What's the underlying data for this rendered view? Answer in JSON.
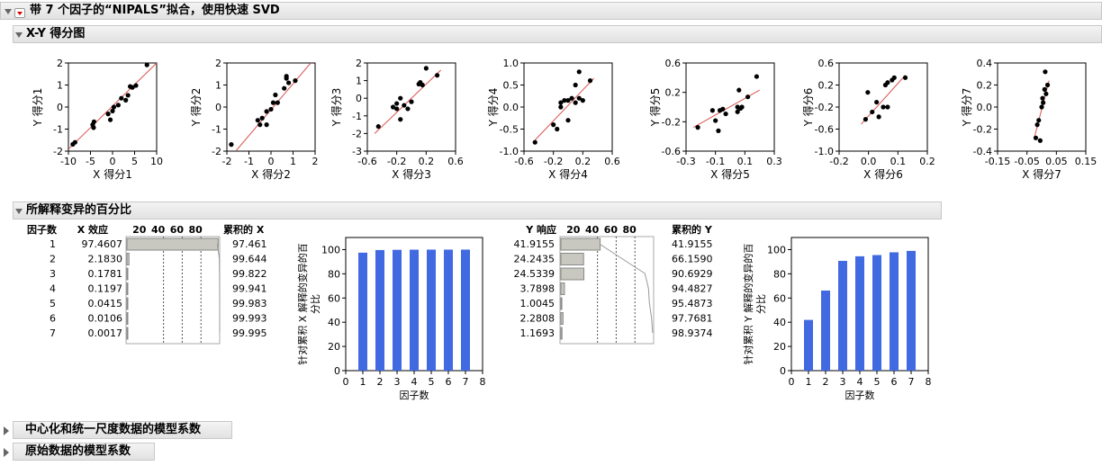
{
  "report": {
    "title": "带 7 个因子的“NIPALS”拟合，使用快速 SVD",
    "xy_section_title": "X-Y 得分图",
    "pct_section_title": "所解释变异的百分比",
    "collapsed_sections": [
      "中心化和统一尺度数据的模型系数",
      "原始数据的模型系数"
    ]
  },
  "colors": {
    "points": "#000000",
    "fit_line": "#d9534f",
    "bars": "#4169e1",
    "hbars": "#c8c8c0"
  },
  "score_plots": [
    {
      "xlabel": "X 得分1",
      "ylabel": "Y 得分1",
      "xticks": [
        "-10",
        "-5",
        "0",
        "5",
        "10"
      ],
      "yticks": [
        "-2",
        "-1",
        "0",
        "1",
        "2"
      ],
      "xlim": [
        -10,
        10
      ],
      "ylim": [
        -2.2,
        2.3
      ],
      "points": [
        [
          -9,
          -1.85
        ],
        [
          -8.5,
          -1.75
        ],
        [
          -4.5,
          -0.85
        ],
        [
          -4.2,
          -0.7
        ],
        [
          -4.3,
          -1.0
        ],
        [
          -1,
          -0.3
        ],
        [
          -0.5,
          -0.6
        ],
        [
          0,
          -0.15
        ],
        [
          0.3,
          0.05
        ],
        [
          1.3,
          0.15
        ],
        [
          2,
          0.5
        ],
        [
          3,
          0.4
        ],
        [
          3.5,
          0.65
        ],
        [
          4,
          1.1
        ],
        [
          4.5,
          1.05
        ],
        [
          5.3,
          1.15
        ],
        [
          7.8,
          2.2
        ]
      ],
      "fit": [
        [
          -10,
          -2.1
        ],
        [
          10,
          2.3
        ]
      ]
    },
    {
      "xlabel": "X 得分2",
      "ylabel": "Y 得分2",
      "xticks": [
        "-2",
        "-1",
        "0",
        "1",
        "2"
      ],
      "yticks": [
        "-2",
        "-1",
        "0",
        "1",
        "2"
      ],
      "xlim": [
        -2,
        2
      ],
      "ylim": [
        -2,
        2
      ],
      "points": [
        [
          -1.8,
          -1.7
        ],
        [
          -0.6,
          -0.6
        ],
        [
          -0.5,
          -0.8
        ],
        [
          -0.4,
          -0.5
        ],
        [
          -0.2,
          -0.8
        ],
        [
          -0.2,
          -0.2
        ],
        [
          0,
          -0.1
        ],
        [
          0.1,
          0.2
        ],
        [
          0.2,
          0.55
        ],
        [
          0.3,
          0.2
        ],
        [
          0.6,
          0.85
        ],
        [
          0.7,
          1.3
        ],
        [
          0.7,
          1.4
        ],
        [
          0.8,
          1.1
        ],
        [
          1.1,
          1.2
        ]
      ],
      "fit": [
        [
          -1.6,
          -2
        ],
        [
          1.8,
          2
        ]
      ]
    },
    {
      "xlabel": "X 得分3",
      "ylabel": "Y 得分3",
      "xticks": [
        "-0.6",
        "-0.2",
        "0.2",
        "0.6"
      ],
      "yticks": [
        "-3",
        "-2",
        "-1",
        "0",
        "1",
        "2"
      ],
      "xlim": [
        -0.6,
        0.6
      ],
      "ylim": [
        -3,
        2
      ],
      "points": [
        [
          -0.45,
          -1.6
        ],
        [
          -0.25,
          -0.5
        ],
        [
          -0.2,
          -0.3
        ],
        [
          -0.2,
          -0.6
        ],
        [
          -0.15,
          0
        ],
        [
          -0.15,
          -1.2
        ],
        [
          -0.1,
          -0.4
        ],
        [
          -0.05,
          -0.6
        ],
        [
          0,
          -0.2
        ],
        [
          0.1,
          0.8
        ],
        [
          0.12,
          0.9
        ],
        [
          0.15,
          0.75
        ],
        [
          0.2,
          1.7
        ],
        [
          0.35,
          1.3
        ]
      ],
      "fit": [
        [
          -0.5,
          -2
        ],
        [
          0.4,
          1.6
        ]
      ]
    },
    {
      "xlabel": "X 得分4",
      "ylabel": "Y 得分4",
      "xticks": [
        "-0.6",
        "-0.2",
        "0.2",
        "0.6"
      ],
      "yticks": [
        "-1.0",
        "-0.5",
        "0.0",
        "0.5",
        "1.0"
      ],
      "xlim": [
        -0.6,
        0.6
      ],
      "ylim": [
        -1,
        1
      ],
      "points": [
        [
          -0.45,
          -0.8
        ],
        [
          -0.2,
          -0.4
        ],
        [
          -0.15,
          -0.5
        ],
        [
          -0.1,
          0
        ],
        [
          -0.1,
          0.1
        ],
        [
          -0.05,
          0.15
        ],
        [
          0,
          -0.3
        ],
        [
          0,
          0.15
        ],
        [
          0.05,
          0.2
        ],
        [
          0.1,
          0.1
        ],
        [
          0.1,
          0.5
        ],
        [
          0.15,
          0.2
        ],
        [
          0.15,
          0.8
        ],
        [
          0.2,
          0.15
        ],
        [
          0.3,
          0.6
        ]
      ],
      "fit": [
        [
          -0.45,
          -0.75
        ],
        [
          0.35,
          0.65
        ]
      ]
    },
    {
      "xlabel": "X 得分5",
      "ylabel": "Y 得分5",
      "xticks": [
        "-0.3",
        "-0.1",
        "0.1",
        "0.3"
      ],
      "yticks": [
        "-0.6",
        "-0.2",
        "0.2",
        "0.6"
      ],
      "xlim": [
        -0.3,
        0.3
      ],
      "ylim": [
        -0.6,
        0.7
      ],
      "points": [
        [
          -0.22,
          -0.25
        ],
        [
          -0.12,
          0
        ],
        [
          -0.1,
          -0.15
        ],
        [
          -0.08,
          -0.3
        ],
        [
          -0.07,
          0
        ],
        [
          -0.05,
          0.02
        ],
        [
          -0.03,
          -0.05
        ],
        [
          0.05,
          -0.02
        ],
        [
          0.05,
          0.05
        ],
        [
          0.06,
          0.3
        ],
        [
          0.07,
          0.03
        ],
        [
          0.08,
          0.05
        ],
        [
          0.12,
          0.2
        ],
        [
          0.18,
          0.5
        ]
      ],
      "fit": [
        [
          -0.25,
          -0.25
        ],
        [
          0.2,
          0.3
        ]
      ]
    },
    {
      "xlabel": "X 得分6",
      "ylabel": "Y 得分6",
      "xticks": [
        "-0.2",
        "0.0",
        "0.1",
        "0.2"
      ],
      "yticks": [
        "-1.0",
        "-0.6",
        "-0.2",
        "0.2",
        "0.6"
      ],
      "xlim": [
        -0.2,
        0.2
      ],
      "ylim": [
        -1,
        0.8
      ],
      "points": [
        [
          -0.08,
          -0.35
        ],
        [
          -0.07,
          0.2
        ],
        [
          -0.05,
          -0.2
        ],
        [
          -0.03,
          0
        ],
        [
          -0.02,
          -0.3
        ],
        [
          0,
          -0.1
        ],
        [
          0.01,
          0.35
        ],
        [
          0.02,
          0.4
        ],
        [
          0.02,
          -0.1
        ],
        [
          0.04,
          0.45
        ],
        [
          0.05,
          0.5
        ],
        [
          0.1,
          0.5
        ]
      ],
      "fit": [
        [
          -0.1,
          -0.45
        ],
        [
          0.1,
          0.55
        ]
      ]
    },
    {
      "xlabel": "X 得分7",
      "ylabel": "Y 得分7",
      "xticks": [
        "-0.15",
        "-0.05",
        "0.05",
        "0.15"
      ],
      "yticks": [
        "-0.4",
        "-0.2",
        "0.0",
        "0.2",
        "0.4"
      ],
      "xlim": [
        -0.15,
        0.15
      ],
      "ylim": [
        -0.5,
        0.5
      ],
      "points": [
        [
          -0.02,
          -0.35
        ],
        [
          -0.015,
          -0.2
        ],
        [
          -0.01,
          -0.15
        ],
        [
          -0.005,
          -0.38
        ],
        [
          0,
          0
        ],
        [
          0.003,
          0.1
        ],
        [
          0.005,
          0.05
        ],
        [
          0.01,
          0.2
        ],
        [
          0.012,
          0.4
        ],
        [
          0.015,
          0.15
        ],
        [
          0.02,
          0.25
        ]
      ],
      "fit": [
        [
          -0.025,
          -0.35
        ],
        [
          0.025,
          0.3
        ]
      ]
    }
  ],
  "pct_table": {
    "headers": {
      "factor": "因子数",
      "x_effect": "X 效应",
      "axis_ticks": [
        "20",
        "40",
        "60",
        "80"
      ],
      "cum_x": "累积的 X",
      "y_resp": "Y 响应",
      "cum_y": "累积的 Y"
    },
    "rows": [
      {
        "n": "1",
        "x": "97.4607",
        "cx": "97.461",
        "y": "41.9155",
        "cy": "41.9155"
      },
      {
        "n": "2",
        "x": "2.1830",
        "cx": "99.644",
        "y": "24.2435",
        "cy": "66.1590"
      },
      {
        "n": "3",
        "x": "0.1781",
        "cx": "99.822",
        "y": "24.5339",
        "cy": "90.6929"
      },
      {
        "n": "4",
        "x": "0.1197",
        "cx": "99.941",
        "y": "3.7898",
        "cy": "94.4827"
      },
      {
        "n": "5",
        "x": "0.0415",
        "cx": "99.983",
        "y": "1.0045",
        "cy": "95.4873"
      },
      {
        "n": "6",
        "x": "0.0106",
        "cx": "99.993",
        "y": "2.2808",
        "cy": "97.7681"
      },
      {
        "n": "7",
        "x": "0.0017",
        "cx": "99.995",
        "y": "1.1693",
        "cy": "98.9374"
      }
    ]
  },
  "chart_data": [
    {
      "type": "bar",
      "categories": [
        "1",
        "2",
        "3",
        "4",
        "5",
        "6",
        "7"
      ],
      "values": [
        97.461,
        99.644,
        99.822,
        99.941,
        99.983,
        99.993,
        99.995
      ],
      "xlabel": "因子数",
      "ylabel": "针对累积 X 解释的变异的百分比",
      "xlim": [
        0,
        8
      ],
      "ylim": [
        0,
        110
      ],
      "xticks": [
        "0",
        "1",
        "2",
        "3",
        "4",
        "5",
        "6",
        "7",
        "8"
      ],
      "yticks": [
        "0",
        "20",
        "40",
        "60",
        "80",
        "100"
      ]
    },
    {
      "type": "bar",
      "categories": [
        "1",
        "2",
        "3",
        "4",
        "5",
        "6",
        "7"
      ],
      "values": [
        41.9155,
        66.159,
        90.6929,
        94.4827,
        95.4873,
        97.7681,
        98.9374
      ],
      "xlabel": "因子数",
      "ylabel": "针对累积 Y 解释的变异的百分比",
      "xlim": [
        0,
        8
      ],
      "ylim": [
        0,
        110
      ],
      "xticks": [
        "0",
        "1",
        "2",
        "3",
        "4",
        "5",
        "6",
        "7",
        "8"
      ],
      "yticks": [
        "0",
        "20",
        "40",
        "60",
        "80",
        "100"
      ]
    }
  ]
}
